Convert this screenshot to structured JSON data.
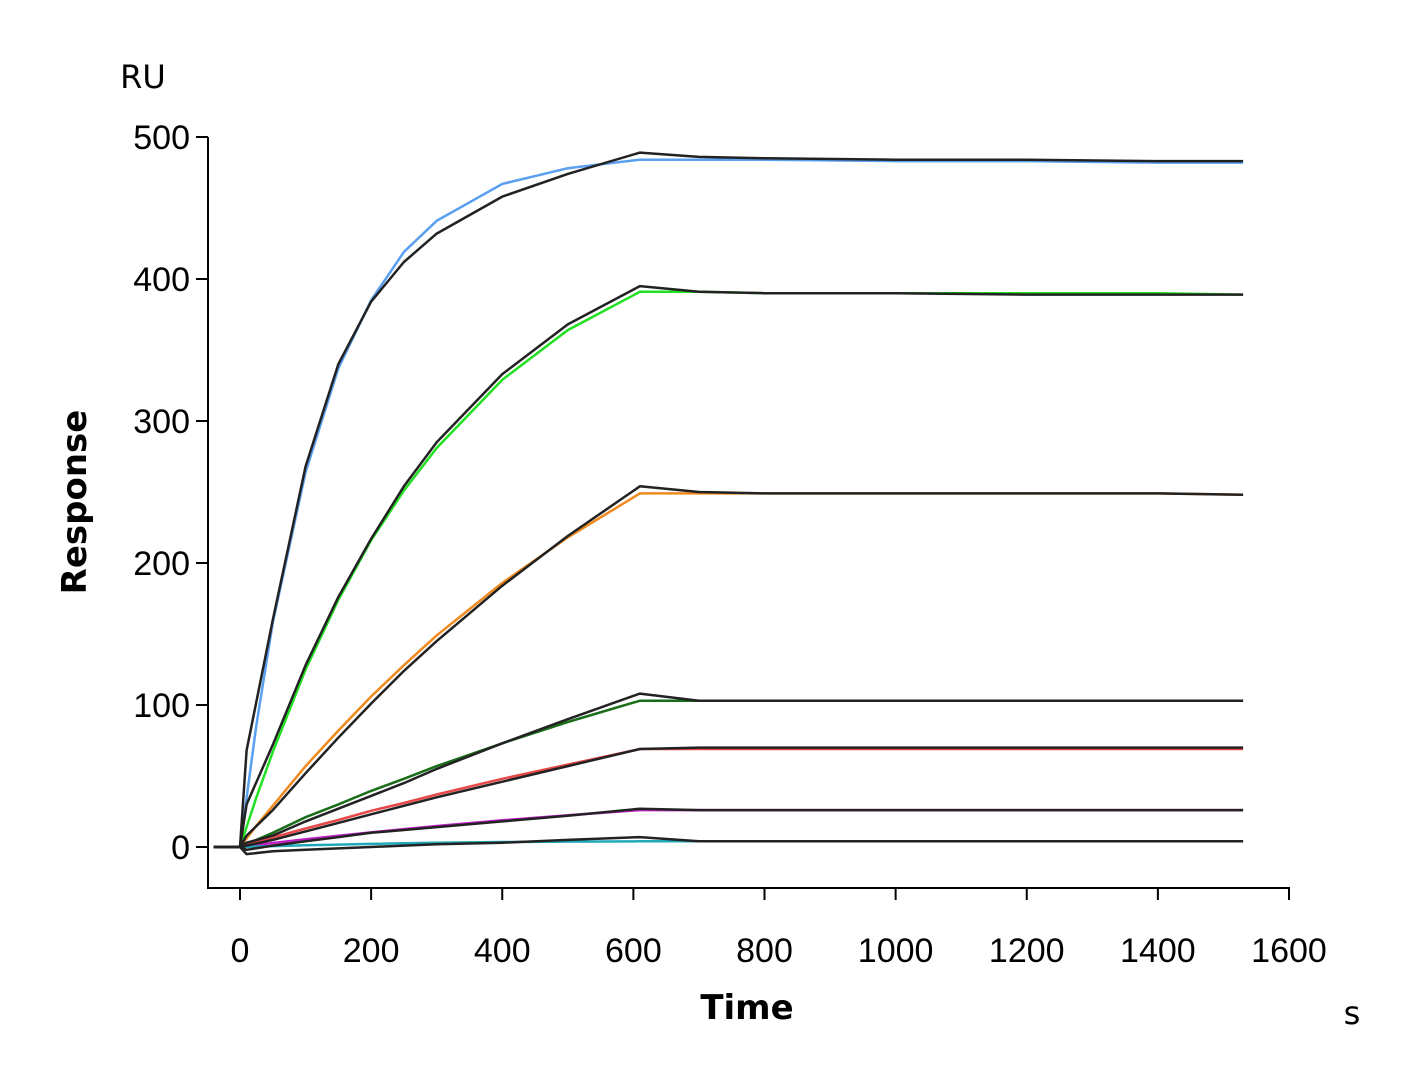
{
  "chart_data": {
    "type": "line",
    "title": "",
    "xlabel": "Time",
    "ylabel": "Response",
    "x_unit": "s",
    "y_unit": "RU",
    "xlim": [
      -50,
      1600
    ],
    "ylim": [
      -30,
      500
    ],
    "x_ticks": [
      0,
      200,
      400,
      600,
      800,
      1000,
      1200,
      1400,
      1600
    ],
    "y_ticks": [
      0,
      100,
      200,
      300,
      400,
      500
    ],
    "x_tick_labels": [
      "0",
      "200",
      "400",
      "600",
      "800",
      "1000",
      "1200",
      "1400",
      "1600"
    ],
    "y_tick_labels": [
      "0",
      "100",
      "200",
      "300",
      "400",
      "500"
    ],
    "grid": false,
    "legend": "none",
    "fit_x": [
      0,
      25,
      50,
      100,
      150,
      200,
      250,
      300,
      400,
      500,
      610,
      700,
      800,
      1000,
      1200,
      1400,
      1530
    ],
    "measured_x": [
      -40,
      0,
      10,
      50,
      100,
      150,
      200,
      250,
      300,
      400,
      500,
      610,
      700,
      800,
      1000,
      1200,
      1400,
      1530
    ],
    "measured_color": "#222222",
    "series": [
      {
        "color": "#5a9ff0",
        "fit": [
          0,
          86,
          158,
          264,
          337,
          385,
          419,
          441,
          467,
          478,
          484,
          484,
          484,
          483,
          483,
          482,
          482
        ],
        "measured": [
          0,
          0,
          68,
          160,
          268,
          340,
          384,
          412,
          432,
          458,
          474,
          489,
          486,
          485,
          484,
          484,
          483,
          483
        ]
      },
      {
        "color": "#22e022",
        "fit": [
          0,
          35,
          67,
          125,
          174,
          216,
          251,
          281,
          329,
          364,
          391,
          391,
          390,
          390,
          390,
          390,
          389
        ],
        "measured": [
          0,
          0,
          30,
          72,
          128,
          176,
          217,
          254,
          285,
          333,
          368,
          395,
          391,
          390,
          390,
          389,
          389,
          389
        ]
      },
      {
        "color": "#f08a1e",
        "fit": [
          0,
          15,
          29,
          57,
          82,
          106,
          128,
          149,
          186,
          218,
          249,
          249,
          249,
          249,
          249,
          249,
          248
        ],
        "measured": [
          0,
          0,
          8,
          26,
          52,
          77,
          101,
          124,
          145,
          184,
          219,
          254,
          250,
          249,
          249,
          249,
          249,
          248
        ]
      },
      {
        "color": "#1a6e1a",
        "fit": [
          0,
          5,
          10,
          21,
          30,
          39.5,
          48,
          57,
          73,
          88,
          103,
          103,
          103,
          103,
          103,
          103,
          103
        ],
        "measured": [
          0,
          0,
          3,
          8,
          18,
          27,
          36,
          45,
          55,
          73,
          90,
          108,
          103,
          103,
          103,
          103,
          103,
          103
        ]
      },
      {
        "color": "#e84848",
        "fit": [
          0,
          3.4,
          6.7,
          13,
          19,
          25.5,
          31,
          37,
          48,
          58,
          69,
          69,
          69,
          69,
          69,
          69,
          69
        ],
        "measured": [
          0,
          0,
          1,
          5,
          11,
          17,
          23,
          29,
          35,
          46,
          57,
          69,
          70,
          70,
          70,
          70,
          70,
          70
        ]
      },
      {
        "color": "#c020c8",
        "fit": [
          0,
          1.4,
          2.8,
          5.4,
          7.9,
          10.3,
          12.6,
          14.8,
          18.8,
          22.4,
          26,
          26,
          26,
          26,
          26,
          26,
          26
        ],
        "measured": [
          0,
          0,
          -2,
          1,
          4,
          7,
          10,
          12,
          14,
          18,
          22,
          27,
          26,
          26,
          26,
          26,
          26,
          26
        ]
      },
      {
        "color": "#20a8b8",
        "fit": [
          0,
          0.3,
          0.6,
          1.2,
          1.7,
          2.2,
          2.6,
          3,
          3.5,
          3.8,
          4,
          4,
          4,
          4,
          4,
          4,
          4
        ],
        "measured": [
          0,
          0,
          -5,
          -3,
          -2,
          -1,
          0,
          1,
          2,
          3,
          5,
          7,
          4,
          4,
          4,
          4,
          4,
          4
        ]
      }
    ]
  }
}
